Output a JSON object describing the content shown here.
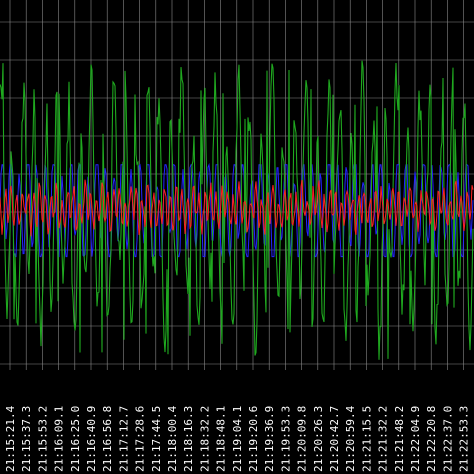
{
  "chart_data": {
    "type": "line",
    "title": "",
    "xlabel": "",
    "ylabel": "",
    "background": "#000000",
    "grid": true,
    "grid_color": "#8a8a8a",
    "legend": "none",
    "x_tick_labels": [
      "21:15:21.4",
      "21:15:37.3",
      "21:15:53.2",
      "21:16:09.1",
      "21:16:25.0",
      "21:16:40.9",
      "21:16:56.8",
      "21:17:12.7",
      "21:17:28.6",
      "21:17:44.5",
      "21:18:00.4",
      "21:18:16.3",
      "21:18:32.2",
      "21:18:48.1",
      "21:19:04.1",
      "21:19:20.6",
      "21:19:36.9",
      "21:19:53.3",
      "21:20:09.8",
      "21:20:26.3",
      "21:20:42.7",
      "21:20:59.4",
      "21:21:15.5",
      "21:21:32.2",
      "21:21:48.2",
      "21:22:04.9",
      "21:22:20.8",
      "21:22:37.0",
      "21:22:53.3"
    ],
    "ylim": [
      -1,
      1
    ],
    "series": [
      {
        "color": "#2424ff",
        "amplitude": 0.19,
        "period": 8.6,
        "noise": 0.03
      },
      {
        "color": "#1fa81f",
        "amplitude": 0.55,
        "period": 11.3,
        "noise": 0.12
      },
      {
        "color": "#ff2020",
        "amplitude": 0.09,
        "period": 5.7,
        "noise": 0.04
      }
    ]
  }
}
